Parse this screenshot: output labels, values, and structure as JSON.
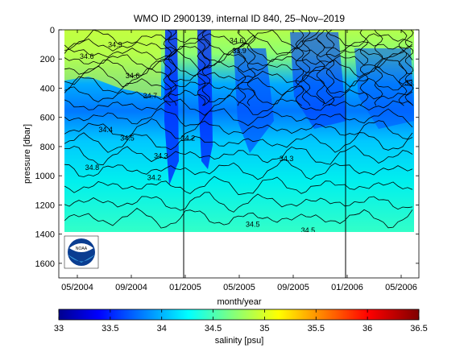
{
  "chart_data": [
    {
      "type": "heatmap",
      "title": "WMO ID 2900139, internal ID 840, 25–Nov–2019",
      "xlabel": "month/year",
      "ylabel": "pressure [dbar]",
      "x_tick_labels": [
        "05/2004",
        "09/2004",
        "01/2005",
        "05/2005",
        "09/2005",
        "01/2006",
        "05/2006"
      ],
      "y_ticks": [
        0,
        200,
        400,
        600,
        800,
        1000,
        1200,
        1400,
        1600
      ],
      "ylim": [
        1700,
        0
      ],
      "y_reversed": true,
      "data_max_pressure": 1400,
      "contour_labels": [
        {
          "text": "34.6",
          "x": 0.7,
          "y": 200
        },
        {
          "text": "34.6",
          "x": 4.1,
          "y": 330
        },
        {
          "text": "34.7",
          "x": 5.4,
          "y": 470
        },
        {
          "text": "34.5",
          "x": 3.7,
          "y": 760
        },
        {
          "text": "34.4",
          "x": 2.1,
          "y": 700
        },
        {
          "text": "34.3",
          "x": 6.2,
          "y": 880
        },
        {
          "text": "34.2",
          "x": 8.2,
          "y": 760
        },
        {
          "text": "34.2",
          "x": 5.7,
          "y": 1030
        },
        {
          "text": "34.8",
          "x": 1.1,
          "y": 960
        },
        {
          "text": "34.9",
          "x": 2.8,
          "y": 120
        },
        {
          "text": "34.6",
          "x": 11.8,
          "y": 90
        },
        {
          "text": "33.9",
          "x": 12.0,
          "y": 160
        },
        {
          "text": "34.3",
          "x": 15.5,
          "y": 900
        },
        {
          "text": "34.5",
          "x": 13.0,
          "y": 1350
        },
        {
          "text": "34.5",
          "x": 17.1,
          "y": 1390
        },
        {
          "text": "34.5",
          "x": 26.0,
          "y": 1370
        },
        {
          "text": "33.8",
          "x": 24.8,
          "y": 380
        },
        {
          "text": "34.5",
          "x": 25.8,
          "y": 445
        }
      ],
      "vertical_markers": [
        "01/2005",
        "01/2006"
      ],
      "logo": "NOAA"
    },
    {
      "type": "colorbar",
      "xlabel": "salinity [psu]",
      "ticks": [
        33,
        33.5,
        34,
        34.5,
        35,
        35.5,
        36,
        36.5
      ],
      "range": [
        33,
        36.5
      ],
      "colormap": "jet"
    }
  ]
}
